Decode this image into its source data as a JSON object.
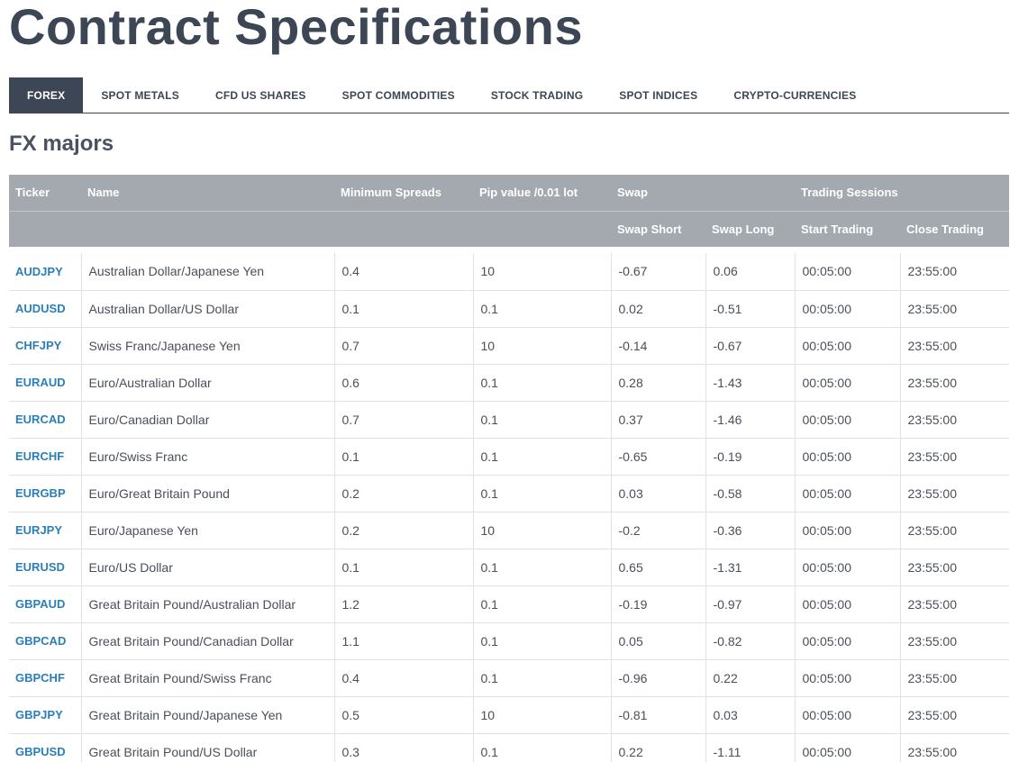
{
  "page": {
    "title": "Contract Specifications"
  },
  "tabs": [
    {
      "label": "FOREX",
      "active": true
    },
    {
      "label": "SPOT METALS",
      "active": false
    },
    {
      "label": "CFD US SHARES",
      "active": false
    },
    {
      "label": "SPOT COMMODITIES",
      "active": false
    },
    {
      "label": "STOCK TRADING",
      "active": false
    },
    {
      "label": "SPOT INDICES",
      "active": false
    },
    {
      "label": "CRYPTO-CURRENCIES",
      "active": false
    }
  ],
  "section": {
    "title": "FX majors"
  },
  "table": {
    "headers": {
      "ticker": "Ticker",
      "name": "Name",
      "min_spreads": "Minimum Spreads",
      "pip_value": "Pip value /0.01 lot",
      "swap": "Swap",
      "trading_sessions": "Trading Sessions",
      "swap_short": "Swap Short",
      "swap_long": "Swap Long",
      "start_trading": "Start Trading",
      "close_trading": "Close Trading"
    },
    "rows": [
      {
        "ticker": "AUDJPY",
        "name": "Australian Dollar/Japanese Yen",
        "spread": "0.4",
        "pip": "10",
        "swap_short": "-0.67",
        "swap_long": "0.06",
        "start": "00:05:00",
        "close": "23:55:00"
      },
      {
        "ticker": "AUDUSD",
        "name": "Australian Dollar/US Dollar",
        "spread": "0.1",
        "pip": "0.1",
        "swap_short": "0.02",
        "swap_long": "-0.51",
        "start": "00:05:00",
        "close": "23:55:00"
      },
      {
        "ticker": "CHFJPY",
        "name": "Swiss Franc/Japanese Yen",
        "spread": "0.7",
        "pip": "10",
        "swap_short": "-0.14",
        "swap_long": "-0.67",
        "start": "00:05:00",
        "close": "23:55:00"
      },
      {
        "ticker": "EURAUD",
        "name": "Euro/Australian Dollar",
        "spread": "0.6",
        "pip": "0.1",
        "swap_short": "0.28",
        "swap_long": "-1.43",
        "start": "00:05:00",
        "close": "23:55:00"
      },
      {
        "ticker": "EURCAD",
        "name": "Euro/Canadian Dollar",
        "spread": "0.7",
        "pip": "0.1",
        "swap_short": "0.37",
        "swap_long": "-1.46",
        "start": "00:05:00",
        "close": "23:55:00"
      },
      {
        "ticker": "EURCHF",
        "name": "Euro/Swiss Franc",
        "spread": "0.1",
        "pip": "0.1",
        "swap_short": "-0.65",
        "swap_long": "-0.19",
        "start": "00:05:00",
        "close": "23:55:00"
      },
      {
        "ticker": "EURGBP",
        "name": "Euro/Great Britain Pound",
        "spread": "0.2",
        "pip": "0.1",
        "swap_short": "0.03",
        "swap_long": "-0.58",
        "start": "00:05:00",
        "close": "23:55:00"
      },
      {
        "ticker": "EURJPY",
        "name": "Euro/Japanese Yen",
        "spread": "0.2",
        "pip": "10",
        "swap_short": "-0.2",
        "swap_long": "-0.36",
        "start": "00:05:00",
        "close": "23:55:00"
      },
      {
        "ticker": "EURUSD",
        "name": "Euro/US Dollar",
        "spread": "0.1",
        "pip": "0.1",
        "swap_short": "0.65",
        "swap_long": "-1.31",
        "start": "00:05:00",
        "close": "23:55:00"
      },
      {
        "ticker": "GBPAUD",
        "name": "Great Britain Pound/Australian Dollar",
        "spread": "1.2",
        "pip": "0.1",
        "swap_short": "-0.19",
        "swap_long": "-0.97",
        "start": "00:05:00",
        "close": "23:55:00"
      },
      {
        "ticker": "GBPCAD",
        "name": "Great Britain Pound/Canadian Dollar",
        "spread": "1.1",
        "pip": "0.1",
        "swap_short": "0.05",
        "swap_long": "-0.82",
        "start": "00:05:00",
        "close": "23:55:00"
      },
      {
        "ticker": "GBPCHF",
        "name": "Great Britain Pound/Swiss Franc",
        "spread": "0.4",
        "pip": "0.1",
        "swap_short": "-0.96",
        "swap_long": "0.22",
        "start": "00:05:00",
        "close": "23:55:00"
      },
      {
        "ticker": "GBPJPY",
        "name": "Great Britain Pound/Japanese Yen",
        "spread": "0.5",
        "pip": "10",
        "swap_short": "-0.81",
        "swap_long": "0.03",
        "start": "00:05:00",
        "close": "23:55:00"
      },
      {
        "ticker": "GBPUSD",
        "name": "Great Britain Pound/US Dollar",
        "spread": "0.3",
        "pip": "0.1",
        "swap_short": "0.22",
        "swap_long": "-1.11",
        "start": "00:05:00",
        "close": "23:55:00"
      }
    ]
  }
}
